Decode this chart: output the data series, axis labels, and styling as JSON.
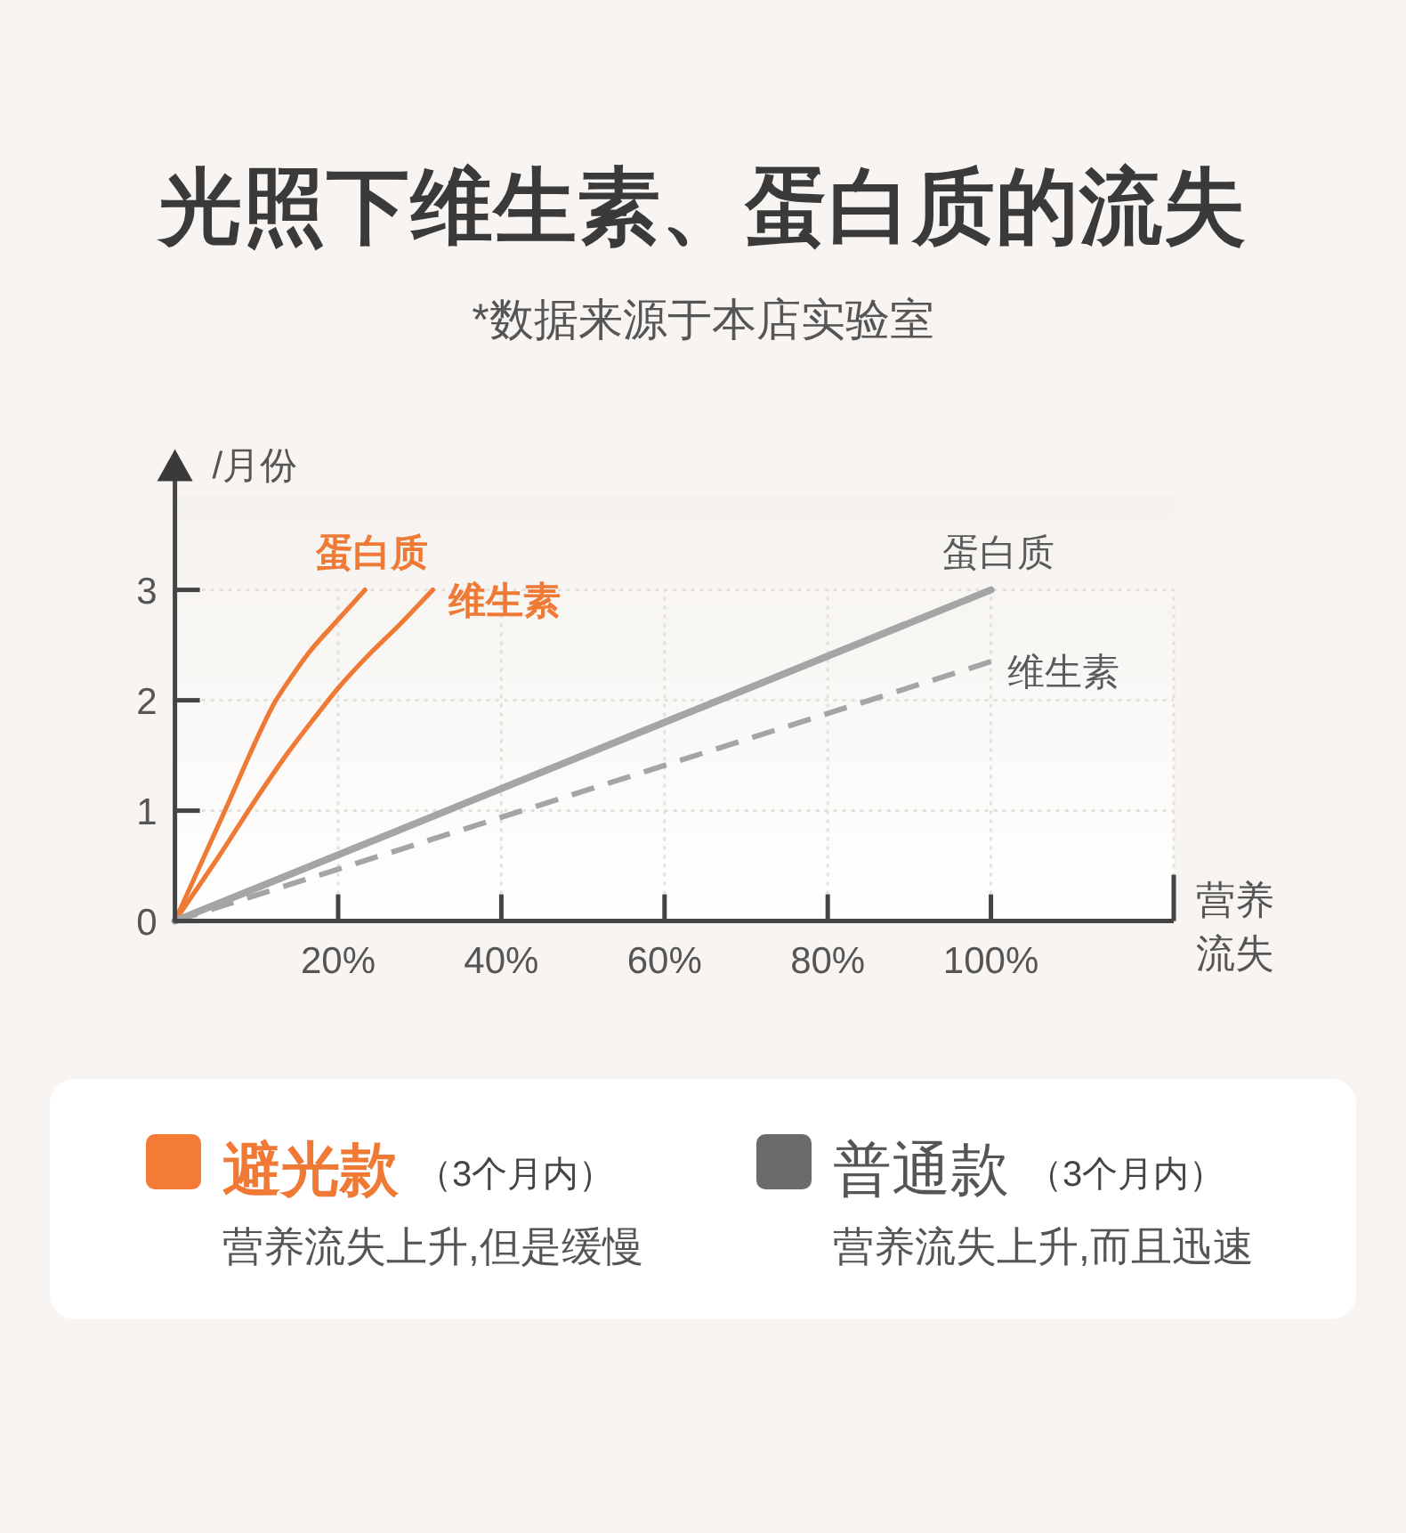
{
  "chart_data": {
    "type": "line",
    "title": "光照下维生素、蛋白质的流失",
    "subtitle": "*数据来源于本店实验室",
    "xlabel": "营养流失",
    "ylabel": "/月份",
    "xlim": [
      0,
      122.4
    ],
    "ylim": [
      0,
      4
    ],
    "xticks": [
      {
        "value": 20,
        "label": "20%"
      },
      {
        "value": 40,
        "label": "40%"
      },
      {
        "value": 60,
        "label": "60%"
      },
      {
        "value": 80,
        "label": "80%"
      },
      {
        "value": 100,
        "label": "100%"
      },
      {
        "value": 122.4,
        "label": null
      }
    ],
    "yticks": [
      0,
      1,
      2,
      3
    ],
    "grid": true,
    "series": [
      {
        "name": "蛋白质",
        "color": "#ef7a36",
        "x": [
          0,
          6.0,
          12.0,
          13.8,
          16.4,
          20.0,
          23.3
        ],
        "values": [
          0,
          0.98,
          1.95,
          2.16,
          2.43,
          2.73,
          3
        ]
      },
      {
        "name": "维生素",
        "color": "#ef7a36",
        "x": [
          0,
          5.5,
          9.8,
          13.8,
          17.1,
          20.0,
          23.6,
          27.6,
          31.6
        ],
        "values": [
          0,
          0.6,
          1.09,
          1.52,
          1.84,
          2.11,
          2.4,
          2.69,
          3
        ]
      },
      {
        "name": "蛋白质",
        "color": "#a5a5a5",
        "x": [
          0,
          100
        ],
        "values": [
          0,
          3
        ]
      },
      {
        "name": "维生素",
        "color": "#a5a5a5",
        "x": [
          0,
          100
        ],
        "values": [
          0,
          2.35
        ],
        "line_style": "dashed"
      }
    ],
    "annotations": [
      "避光款",
      "（3个月内）",
      "营养流失上升,但是缓慢",
      "普通款",
      "（3个月内）",
      "营养流失上升,而且迅速"
    ]
  }
}
